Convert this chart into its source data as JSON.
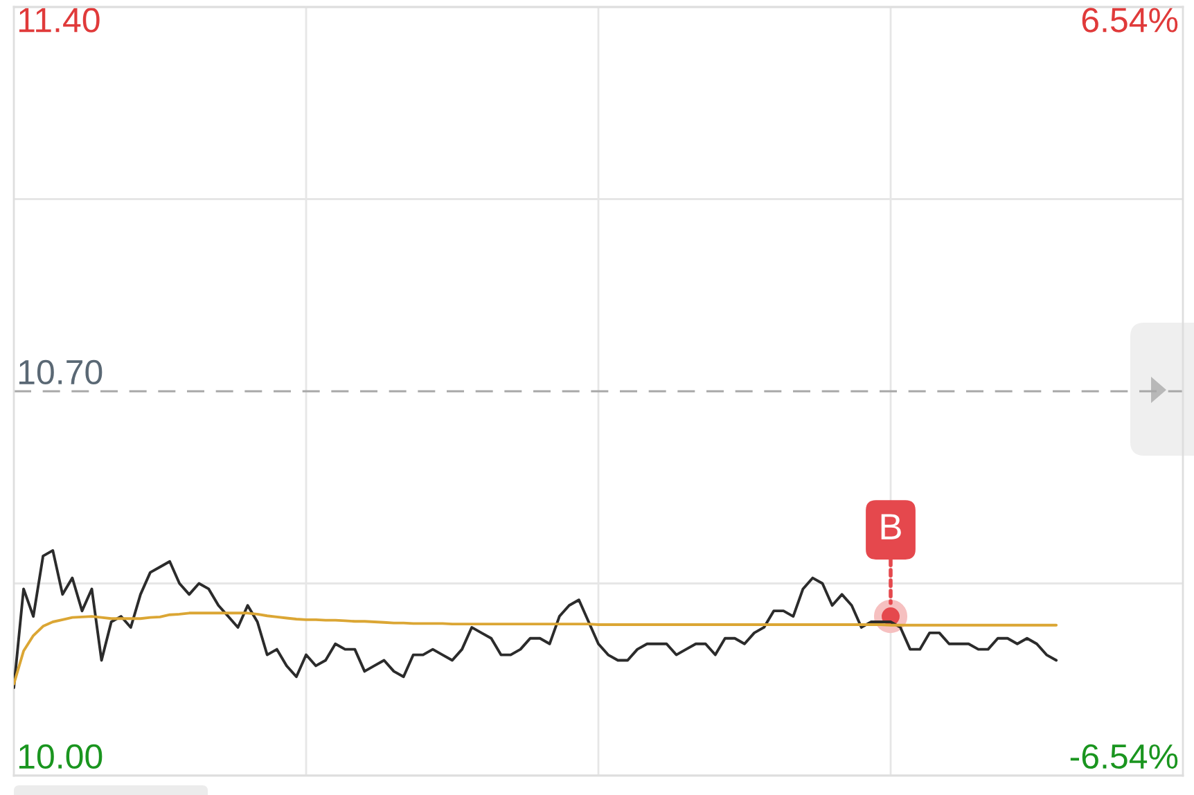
{
  "chart_data": {
    "type": "line",
    "categories": [
      null,
      null,
      null,
      null,
      null,
      null,
      null,
      null,
      null,
      null,
      null,
      null,
      null,
      null,
      null,
      null,
      null,
      null,
      null,
      null,
      null,
      null,
      null,
      null,
      null,
      null,
      null,
      null,
      null,
      null,
      null,
      null,
      null,
      null,
      null,
      null,
      null,
      null,
      null,
      null,
      null,
      null,
      null,
      null,
      null,
      null,
      null,
      null,
      null,
      null,
      null,
      null,
      null,
      null,
      null,
      null,
      null,
      null,
      null,
      null,
      null,
      null,
      null,
      null,
      null,
      null,
      null,
      null,
      null,
      null,
      null,
      null,
      null,
      null,
      null,
      null,
      null,
      null,
      null,
      null,
      null,
      null,
      null,
      null,
      null,
      null,
      null,
      null,
      null,
      null,
      null,
      null,
      null,
      null,
      null,
      null,
      null,
      null,
      null,
      null,
      null,
      null,
      null,
      null,
      null,
      null,
      null,
      null,
      null,
      null,
      null,
      null,
      null,
      null,
      null,
      null,
      null,
      null,
      null,
      null,
      null
    ],
    "ylim": [
      10.0,
      11.4
    ],
    "yticks": [
      {
        "value": 11.4,
        "label": "11.40"
      },
      {
        "value": 11.05,
        "label": null
      },
      {
        "value": 10.7,
        "label": "10.70"
      },
      {
        "value": 10.35,
        "label": null
      },
      {
        "value": 10.0,
        "label": "10.00"
      }
    ],
    "grid": true,
    "ref_lines": [
      {
        "axis": "y",
        "value": 10.7,
        "color": "#a8a8a8",
        "line_style": "dashed"
      }
    ],
    "series": [
      {
        "color": "#2b2b2b",
        "values": [
          10.16,
          10.34,
          10.29,
          10.4,
          10.41,
          10.33,
          10.36,
          10.3,
          10.34,
          10.21,
          10.28,
          10.29,
          10.27,
          10.33,
          10.37,
          10.38,
          10.39,
          10.35,
          10.33,
          10.35,
          10.34,
          10.31,
          10.29,
          10.27,
          10.31,
          10.28,
          10.22,
          10.23,
          10.2,
          10.18,
          10.22,
          10.2,
          10.21,
          10.24,
          10.23,
          10.23,
          10.19,
          10.2,
          10.21,
          10.19,
          10.18,
          10.22,
          10.22,
          10.23,
          10.22,
          10.21,
          10.23,
          10.27,
          10.26,
          10.25,
          10.22,
          10.22,
          10.23,
          10.25,
          10.25,
          10.24,
          10.29,
          10.31,
          10.32,
          10.28,
          10.24,
          10.22,
          10.21,
          10.21,
          10.23,
          10.24,
          10.24,
          10.24,
          10.22,
          10.23,
          10.24,
          10.24,
          10.22,
          10.25,
          10.25,
          10.24,
          10.26,
          10.27,
          10.3,
          10.3,
          10.29,
          10.34,
          10.36,
          10.35,
          10.31,
          10.33,
          10.31,
          10.27,
          10.28,
          10.28,
          10.28,
          10.27,
          10.23,
          10.23,
          10.26,
          10.26,
          10.24,
          10.24,
          10.24,
          10.23,
          10.23,
          10.25,
          10.25,
          10.24,
          10.25,
          10.24,
          10.22,
          10.21,
          null,
          null,
          null,
          null,
          null,
          null,
          null,
          null,
          null,
          null,
          null,
          null,
          null
        ]
      },
      {
        "color": "#dba634",
        "values": [
          10.167,
          10.227,
          10.255,
          10.272,
          10.28,
          10.284,
          10.288,
          10.289,
          10.29,
          10.288,
          10.286,
          10.286,
          10.286,
          10.286,
          10.288,
          10.289,
          10.293,
          10.294,
          10.296,
          10.296,
          10.296,
          10.296,
          10.296,
          10.296,
          10.296,
          10.294,
          10.291,
          10.289,
          10.287,
          10.285,
          10.284,
          10.284,
          10.283,
          10.283,
          10.282,
          10.281,
          10.281,
          10.28,
          10.279,
          10.278,
          10.278,
          10.277,
          10.277,
          10.277,
          10.277,
          10.276,
          10.276,
          10.276,
          10.276,
          10.276,
          10.276,
          10.276,
          10.276,
          10.276,
          10.276,
          10.276,
          10.276,
          10.276,
          10.276,
          10.276,
          10.275,
          10.275,
          10.275,
          10.275,
          10.275,
          10.275,
          10.275,
          10.275,
          10.275,
          10.275,
          10.275,
          10.275,
          10.275,
          10.275,
          10.275,
          10.275,
          10.275,
          10.275,
          10.275,
          10.275,
          10.275,
          10.275,
          10.275,
          10.275,
          10.275,
          10.275,
          10.275,
          10.275,
          10.275,
          10.275,
          10.274,
          10.274,
          10.274,
          10.274,
          10.274,
          10.274,
          10.274,
          10.274,
          10.274,
          10.274,
          10.274,
          10.274,
          10.274,
          10.274,
          10.274,
          10.274,
          10.274,
          10.274,
          null,
          null,
          null,
          null,
          null,
          null,
          null,
          null,
          null,
          null,
          null,
          null,
          null
        ]
      },
      {
        "type": "scatter",
        "marker": "circle",
        "color": "#e5484d",
        "values": [
          null,
          null,
          null,
          null,
          null,
          null,
          null,
          null,
          null,
          null,
          null,
          null,
          null,
          null,
          null,
          null,
          null,
          null,
          null,
          null,
          null,
          null,
          null,
          null,
          null,
          null,
          null,
          null,
          null,
          null,
          null,
          null,
          null,
          null,
          null,
          null,
          null,
          null,
          null,
          null,
          null,
          null,
          null,
          null,
          null,
          null,
          null,
          null,
          null,
          null,
          null,
          null,
          null,
          null,
          null,
          null,
          null,
          null,
          null,
          null,
          null,
          null,
          null,
          null,
          null,
          null,
          null,
          null,
          null,
          null,
          null,
          null,
          null,
          null,
          null,
          null,
          null,
          null,
          null,
          null,
          null,
          null,
          null,
          null,
          null,
          null,
          null,
          null,
          null,
          null,
          10.29,
          null,
          null,
          null,
          null,
          null,
          null,
          null,
          null,
          null,
          null,
          null,
          null,
          null,
          null,
          null,
          null,
          null,
          null,
          null,
          null,
          null,
          null,
          null,
          null,
          null,
          null,
          null,
          null,
          null,
          null
        ]
      }
    ],
    "annotations": [
      {
        "text": "B",
        "y": 10.29
      },
      "6.54%",
      "-6.54%"
    ]
  }
}
